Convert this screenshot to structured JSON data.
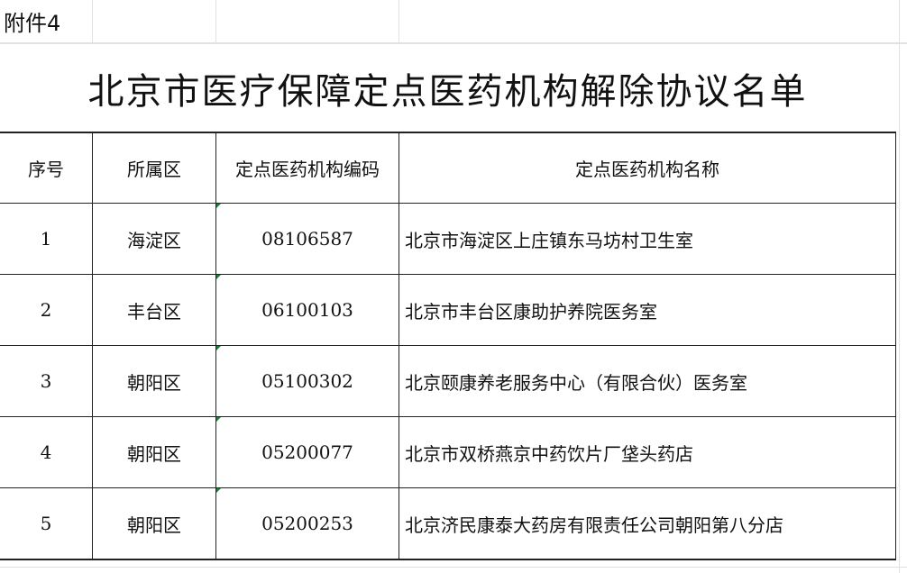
{
  "attachment_label": "附件4",
  "title": "北京市医疗保障定点医药机构解除协议名单",
  "headers": [
    "序号",
    "所属区",
    "定点医药机构编码",
    "定点医药机构名称"
  ],
  "rows": [
    {
      "no": "1",
      "district": "海淀区",
      "code": "08106587",
      "name": "北京市海淀区上庄镇东马坊村卫生室"
    },
    {
      "no": "2",
      "district": "丰台区",
      "code": "06100103",
      "name": "北京市丰台区康助护养院医务室"
    },
    {
      "no": "3",
      "district": "朝阳区",
      "code": "05100302",
      "name": "北京颐康养老服务中心（有限合伙）医务室"
    },
    {
      "no": "4",
      "district": "朝阳区",
      "code": "05200077",
      "name": "北京市双桥燕京中药饮片厂垡头药店"
    },
    {
      "no": "5",
      "district": "朝阳区",
      "code": "05200253",
      "name": "北京济民康泰大药房有限责任公司朝阳第八分店"
    }
  ]
}
